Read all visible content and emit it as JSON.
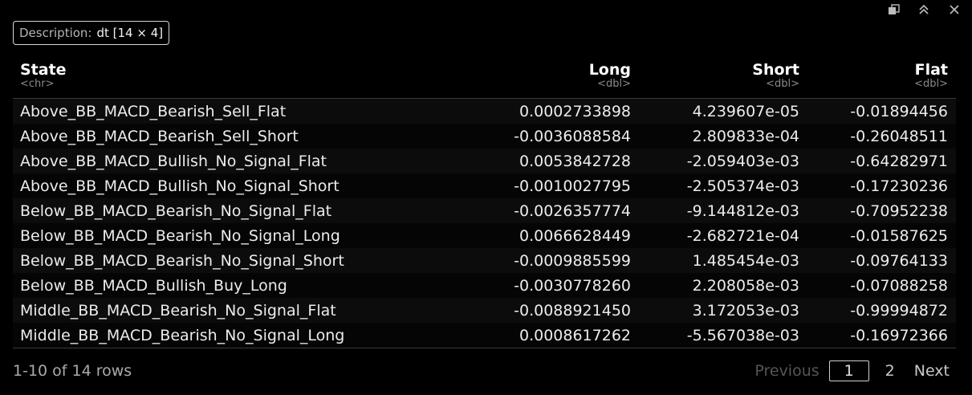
{
  "description": {
    "label": "Description:",
    "value": "dt [14 × 4]"
  },
  "toolbar": {
    "icons": [
      "export-icon",
      "collapse-icon",
      "close-icon"
    ]
  },
  "table": {
    "columns": [
      {
        "name": "State",
        "type": "<chr>"
      },
      {
        "name": "Long",
        "type": "<dbl>"
      },
      {
        "name": "Short",
        "type": "<dbl>"
      },
      {
        "name": "Flat",
        "type": "<dbl>"
      }
    ],
    "rows": [
      [
        "Above_BB_MACD_Bearish_Sell_Flat",
        "0.0002733898",
        "4.239607e-05",
        "-0.01894456"
      ],
      [
        "Above_BB_MACD_Bearish_Sell_Short",
        "-0.0036088584",
        "2.809833e-04",
        "-0.26048511"
      ],
      [
        "Above_BB_MACD_Bullish_No_Signal_Flat",
        "0.0053842728",
        "-2.059403e-03",
        "-0.64282971"
      ],
      [
        "Above_BB_MACD_Bullish_No_Signal_Short",
        "-0.0010027795",
        "-2.505374e-03",
        "-0.17230236"
      ],
      [
        "Below_BB_MACD_Bearish_No_Signal_Flat",
        "-0.0026357774",
        "-9.144812e-03",
        "-0.70952238"
      ],
      [
        "Below_BB_MACD_Bearish_No_Signal_Long",
        "0.0066628449",
        "-2.682721e-04",
        "-0.01587625"
      ],
      [
        "Below_BB_MACD_Bearish_No_Signal_Short",
        "-0.0009885599",
        "1.485454e-03",
        "-0.09764133"
      ],
      [
        "Below_BB_MACD_Bullish_Buy_Long",
        "-0.0030778260",
        "2.208058e-03",
        "-0.07088258"
      ],
      [
        "Middle_BB_MACD_Bearish_No_Signal_Flat",
        "-0.0088921450",
        "3.172053e-03",
        "-0.99994872"
      ],
      [
        "Middle_BB_MACD_Bearish_No_Signal_Long",
        "0.0008617262",
        "-5.567038e-03",
        "-0.16972366"
      ]
    ]
  },
  "footer": {
    "rows_info": "1-10 of 14 rows",
    "previous_label": "Previous",
    "current_page": "1",
    "next_page": "2",
    "next_label": "Next"
  }
}
